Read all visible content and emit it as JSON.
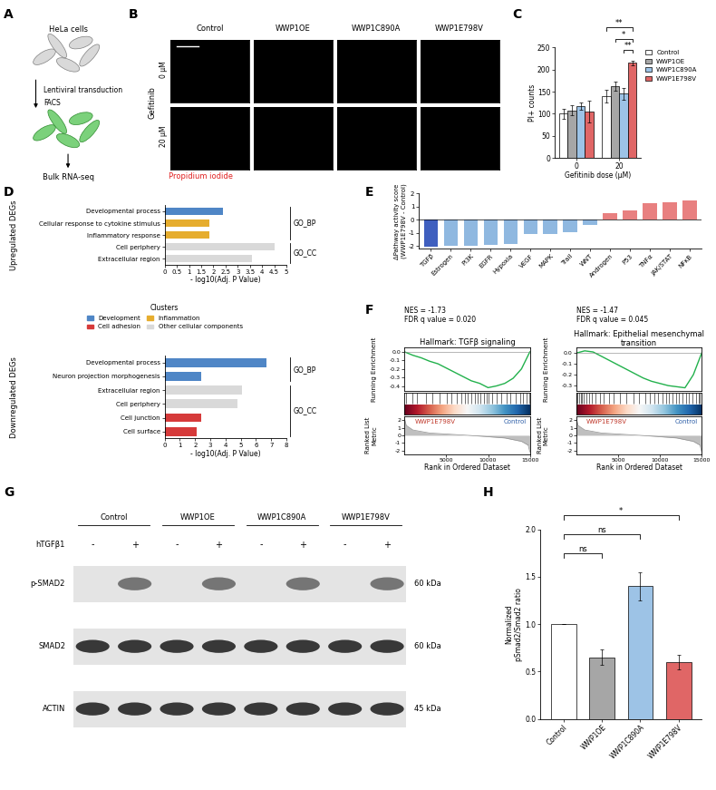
{
  "panel_labels": [
    "A",
    "B",
    "C",
    "D",
    "E",
    "F",
    "G",
    "H"
  ],
  "diagram": {
    "steps": [
      "HeLa cells",
      "Lentiviral transduction",
      "FACS",
      "Bulk RNA-seq"
    ]
  },
  "images": {
    "columns": [
      "Control",
      "WWP1OE",
      "WWP1C890A",
      "WWP1E798V"
    ],
    "rows": [
      "0 µM",
      "20 µM"
    ],
    "row_title": "Gefitinib",
    "stain": "Propidium iodide"
  },
  "clusters_legend": {
    "title": "Clusters",
    "entries": [
      {
        "name": "Development",
        "color": "#4f86c6"
      },
      {
        "name": "Cell adhesion",
        "color": "#d63a3a"
      },
      {
        "name": "Inflammation",
        "color": "#e6ad2e"
      },
      {
        "name": "Other cellular components",
        "color": "#d9d9d9"
      }
    ]
  },
  "blot": {
    "groups": [
      "Control",
      "WWP1OE",
      "WWP1C890A",
      "WWP1E798V"
    ],
    "treatment_label": "hTGFβ1",
    "treatments": [
      "-",
      "+",
      "-",
      "+",
      "-",
      "+",
      "-",
      "+"
    ],
    "rows": [
      {
        "label": "p-SMAD2",
        "size": "60 kDa"
      },
      {
        "label": "SMAD2",
        "size": "60 kDa"
      },
      {
        "label": "ACTIN",
        "size": "45 kDa"
      }
    ]
  },
  "chart_data": [
    {
      "type": "bar",
      "categories": [
        "0",
        "20"
      ],
      "xlabel": "Gefitinib dose (µM)",
      "ylabel": "PI+ counts",
      "ylim": [
        0,
        250
      ],
      "yticks": [
        0,
        50,
        100,
        150,
        200,
        250
      ],
      "legend": "upper left",
      "series": [
        {
          "name": "Control",
          "color": "#ffffff",
          "values": [
            100,
            140
          ],
          "errors": [
            12,
            14
          ]
        },
        {
          "name": "WWP1OE",
          "color": "#a6a6a6",
          "values": [
            108,
            163
          ],
          "errors": [
            12,
            10
          ]
        },
        {
          "name": "WWP1C890A",
          "color": "#9dc3e6",
          "values": [
            118,
            145
          ],
          "errors": [
            8,
            14
          ]
        },
        {
          "name": "WWP1E798V",
          "color": "#e06666",
          "values": [
            105,
            215
          ],
          "errors": [
            25,
            5
          ]
        }
      ],
      "significance": [
        {
          "category": "20",
          "between": [
            "WWP1C890A",
            "WWP1E798V"
          ],
          "label": "**"
        },
        {
          "category": "20",
          "between": [
            "WWP1OE",
            "WWP1E798V"
          ],
          "label": "*"
        },
        {
          "category": "20",
          "between": [
            "Control",
            "WWP1E798V"
          ],
          "label": "**"
        }
      ]
    },
    {
      "type": "bar",
      "orientation": "horizontal",
      "title": "Upregulated DEGs",
      "categories": [
        "Developmental process",
        "Cellular response to cytokine stimulus",
        "Inflammatory response",
        "Cell periphery",
        "Extracellular region"
      ],
      "values": [
        2.4,
        1.85,
        1.85,
        4.5,
        3.6
      ],
      "cluster": [
        "Development",
        "Inflammation",
        "Inflammation",
        "Other cellular components",
        "Other cellular components"
      ],
      "group": [
        "GO_BP",
        "GO_BP",
        "GO_BP",
        "GO_CC",
        "GO_CC"
      ],
      "xlim": [
        0,
        5
      ],
      "xticks": [
        0,
        0.5,
        1,
        1.5,
        2,
        2.5,
        3,
        3.5,
        4,
        4.5,
        5
      ],
      "xlabel": "- log10(Adj. P Value)"
    },
    {
      "type": "bar",
      "orientation": "horizontal",
      "title": "Downregulated DEGs",
      "categories": [
        "Developmental process",
        "Neuron projection morphogenesis",
        "Extracellular region",
        "Cell periphery",
        "Cell junction",
        "Cell surface"
      ],
      "values": [
        6.7,
        2.4,
        5.1,
        4.8,
        2.4,
        2.1
      ],
      "cluster": [
        "Development",
        "Development",
        "Other cellular components",
        "Other cellular components",
        "Cell adhesion",
        "Cell adhesion"
      ],
      "group": [
        "GO_BP",
        "GO_BP",
        "GO_CC",
        "GO_CC",
        "GO_CC",
        "GO_CC"
      ],
      "xlim": [
        0,
        8
      ],
      "xticks": [
        0,
        1,
        2,
        3,
        4,
        5,
        6,
        7,
        8
      ],
      "xlabel": "- log10(Adj. P Value)"
    },
    {
      "type": "bar",
      "categories": [
        "TGFβ",
        "Estrogen",
        "PI3K",
        "EGFR",
        "Hypoxia",
        "VEGF",
        "MAPK",
        "Trail",
        "WNT",
        "Androgen",
        "P53",
        "TNFα",
        "JAK/STAT",
        "NFκB"
      ],
      "values": [
        -2.05,
        -2.0,
        -1.95,
        -1.9,
        -1.85,
        -1.1,
        -1.05,
        -0.95,
        -0.35,
        0.5,
        0.75,
        1.3,
        1.35,
        1.45
      ],
      "colors": [
        "#3f5fbf",
        "#8fb8e0",
        "#8fb8e0",
        "#8fb8e0",
        "#8fb8e0",
        "#8fb8e0",
        "#8fb8e0",
        "#8fb8e0",
        "#8fb8e0",
        "#e88080",
        "#e88080",
        "#e88080",
        "#e88080",
        "#e88080"
      ],
      "ylabel": "ΔPathway activity score\n(WWP1E798V - Control)",
      "ylim": [
        -2.2,
        2
      ],
      "yticks": [
        -2,
        -1,
        0,
        1,
        2
      ]
    },
    {
      "type": "line",
      "title": "Hallmark: TGFβ signaling",
      "annotations": [
        "NES = -1.73",
        "FDR q value = 0.020"
      ],
      "color": "#22b14c",
      "ylabel": "Running Enrichment",
      "x": [
        0,
        1000,
        2000,
        3000,
        4000,
        5000,
        6000,
        7000,
        8000,
        9000,
        10000,
        11000,
        12000,
        13000,
        14000,
        15000
      ],
      "values": [
        0,
        -0.04,
        -0.07,
        -0.11,
        -0.14,
        -0.19,
        -0.24,
        -0.29,
        -0.34,
        -0.37,
        -0.42,
        -0.4,
        -0.37,
        -0.31,
        -0.2,
        0
      ],
      "ylim": [
        -0.46,
        0.05
      ],
      "yticks": [
        {
          "value": 0,
          "label": "0.0"
        },
        {
          "value": -0.1,
          "label": "-0.1"
        },
        {
          "value": -0.2,
          "label": "-0.2"
        },
        {
          "value": -0.3,
          "label": "-0.3"
        },
        {
          "value": -0.4,
          "label": "-0.4"
        }
      ],
      "hits": [
        200,
        900,
        1500,
        2600,
        3300,
        4200,
        5100,
        5600,
        6300,
        6800,
        7200,
        7600,
        8000,
        8400,
        8800,
        9100,
        9500,
        9800,
        10100,
        10500,
        11000,
        11600,
        12200,
        12700,
        13300,
        13800,
        14200,
        14600,
        14900
      ],
      "phenotypes": [
        "WWP1E798V",
        "Control"
      ],
      "xlim": [
        0,
        15000
      ],
      "xticks": [
        5000,
        10000,
        15000
      ],
      "xlabel": "Rank in Ordered Dataset",
      "ranked_metric": {
        "ylabel": "Ranked List\nMetric",
        "x": [
          0,
          200,
          1000,
          3000,
          6000,
          7500,
          9000,
          12000,
          14000,
          14800,
          15000
        ],
        "values": [
          2.2,
          1.3,
          0.7,
          0.3,
          0.1,
          0,
          -0.1,
          -0.35,
          -0.8,
          -1.3,
          -2.2
        ],
        "ylim": [
          -2.5,
          2.5
        ],
        "yticks": [
          -2,
          -1,
          0,
          1,
          2
        ]
      }
    },
    {
      "type": "line",
      "title": "Hallmark: Epithelial mesenchymal transition",
      "annotations": [
        "NES = -1.47",
        "FDR q value = 0.045"
      ],
      "color": "#22b14c",
      "ylabel": "Running Enrichment",
      "x": [
        0,
        1000,
        2000,
        3000,
        4000,
        5000,
        6000,
        7000,
        8000,
        9000,
        10000,
        11000,
        12000,
        13000,
        14000,
        15000
      ],
      "values": [
        0,
        0.02,
        0.01,
        -0.03,
        -0.07,
        -0.11,
        -0.15,
        -0.19,
        -0.23,
        -0.26,
        -0.28,
        -0.3,
        -0.31,
        -0.32,
        -0.2,
        0
      ],
      "ylim": [
        -0.35,
        0.05
      ],
      "yticks": [
        {
          "value": 0,
          "label": "0.0"
        },
        {
          "value": -0.1,
          "label": "-0.1"
        },
        {
          "value": -0.2,
          "label": "-0.2"
        },
        {
          "value": -0.3,
          "label": "-0.3"
        }
      ],
      "hits": [
        50,
        150,
        300,
        500,
        700,
        900,
        1200,
        1500,
        1900,
        2300,
        2800,
        3300,
        3900,
        4500,
        5200,
        6000,
        6800,
        7500,
        8200,
        8800,
        9300,
        9800,
        10300,
        10700,
        11100,
        11500,
        11900,
        12300,
        12700,
        13100,
        13500,
        13900,
        14300,
        14600,
        14800,
        14950
      ],
      "phenotypes": [
        "WWP1E798V",
        "Control"
      ],
      "xlim": [
        0,
        15000
      ],
      "xticks": [
        5000,
        10000,
        15000
      ],
      "xlabel": "Rank in Ordered Dataset",
      "ranked_metric": {
        "ylabel": "Ranked List\nMetric",
        "x": [
          0,
          200,
          1000,
          3000,
          6000,
          7500,
          9000,
          12000,
          14000,
          14800,
          15000
        ],
        "values": [
          2.2,
          1.3,
          0.7,
          0.3,
          0.1,
          0,
          -0.1,
          -0.35,
          -0.8,
          -1.3,
          -2.2
        ],
        "ylim": [
          -2.5,
          2.5
        ],
        "yticks": [
          -2,
          -1,
          0,
          1,
          2
        ]
      }
    },
    {
      "type": "bar",
      "categories": [
        "Control",
        "WWP1OE",
        "WWP1C890A",
        "WWP1E798V"
      ],
      "values": [
        1.0,
        0.65,
        1.4,
        0.6
      ],
      "errors": [
        0,
        0.08,
        0.15,
        0.08
      ],
      "colors": [
        "#ffffff",
        "#a6a6a6",
        "#9dc3e6",
        "#e06666"
      ],
      "ylabel": "Normalized\npSmad2/Smad2 ratio",
      "ylim": [
        0,
        2
      ],
      "yticks": [
        {
          "value": 0,
          "label": "0.0"
        },
        {
          "value": 0.5,
          "label": "0.5"
        },
        {
          "value": 1,
          "label": "1.0"
        },
        {
          "value": 1.5,
          "label": "1.5"
        },
        {
          "value": 2,
          "label": "2.0"
        }
      ],
      "significance": [
        {
          "between": [
            "Control",
            "WWP1OE"
          ],
          "label": "ns"
        },
        {
          "between": [
            "Control",
            "WWP1C890A"
          ],
          "label": "ns"
        },
        {
          "between": [
            "Control",
            "WWP1E798V"
          ],
          "label": "*"
        }
      ]
    }
  ]
}
